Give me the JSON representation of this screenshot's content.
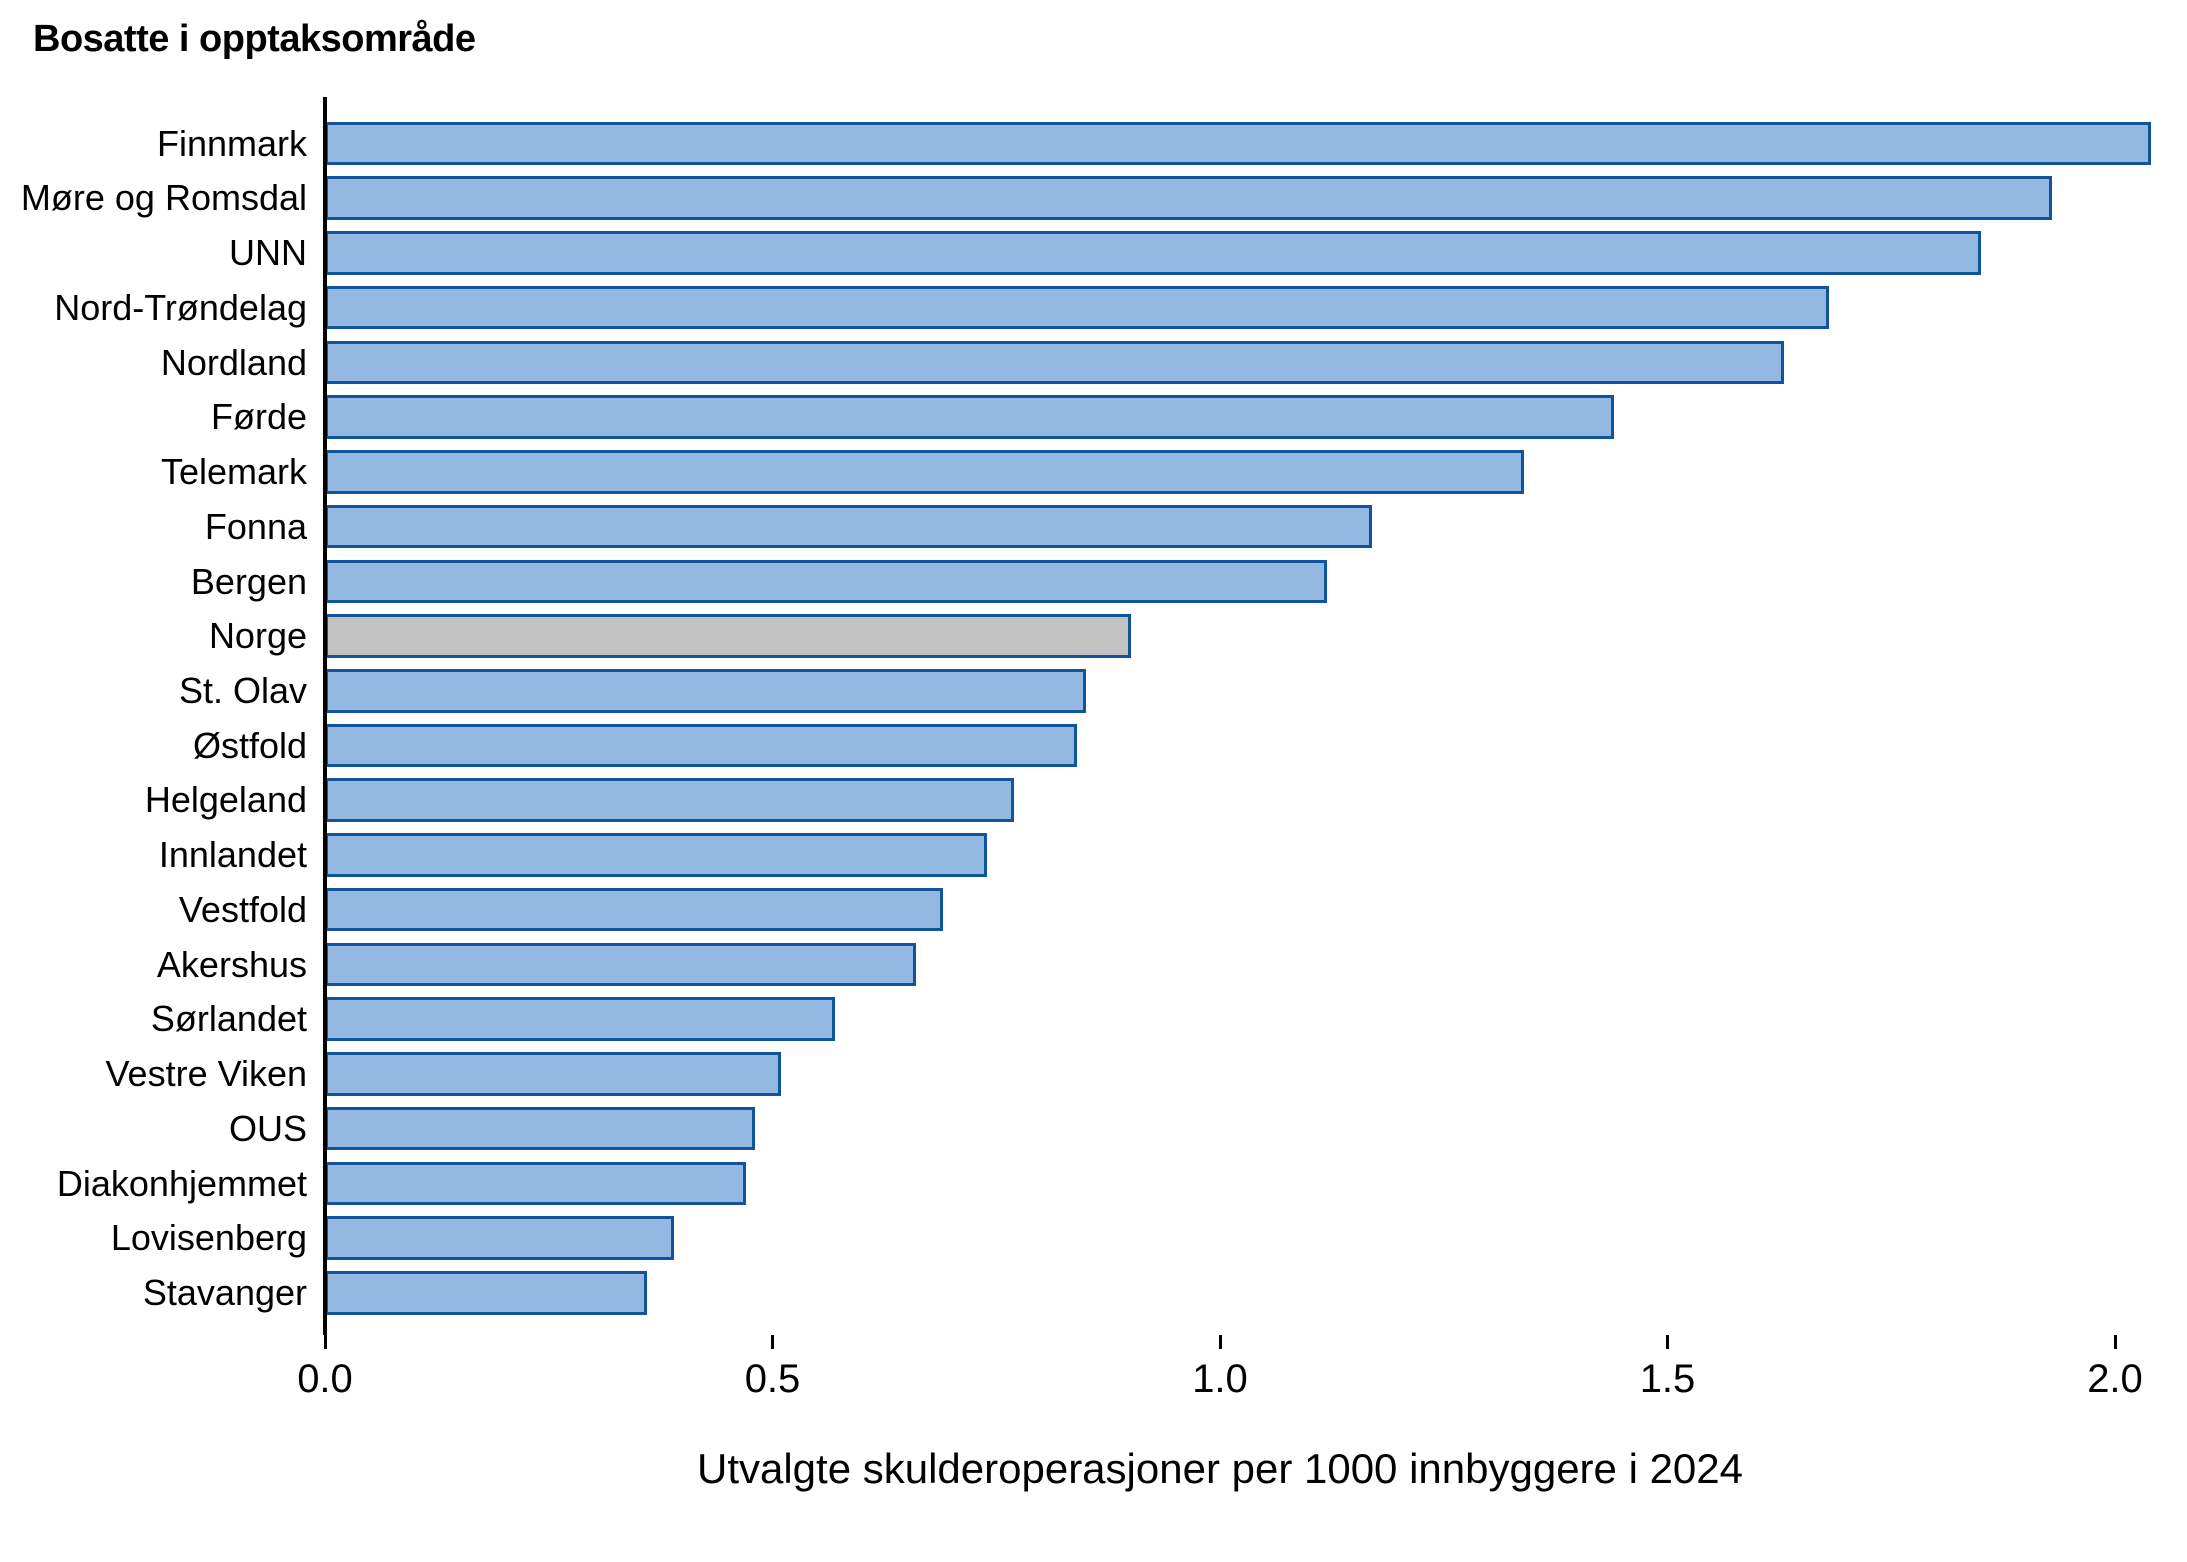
{
  "title": "Bosatte i opptaksområde",
  "chart_data": {
    "type": "bar",
    "orientation": "horizontal",
    "title": "Bosatte i opptaksområde",
    "xlabel": "Utvalgte skulderoperasjoner per 1000 innbyggere i 2024",
    "categories": [
      "Finnmark",
      "Møre og Romsdal",
      "UNN",
      "Nord-Trøndelag",
      "Nordland",
      "Førde",
      "Telemark",
      "Fonna",
      "Bergen",
      "Norge",
      "St. Olav",
      "Østfold",
      "Helgeland",
      "Innlandet",
      "Vestfold",
      "Akershus",
      "Sørlandet",
      "Vestre Viken",
      "OUS",
      "Diakonhjemmet",
      "Lovisenberg",
      "Stavanger"
    ],
    "values": [
      2.04,
      1.93,
      1.85,
      1.68,
      1.63,
      1.44,
      1.34,
      1.17,
      1.12,
      0.9,
      0.85,
      0.84,
      0.77,
      0.74,
      0.69,
      0.66,
      0.57,
      0.51,
      0.48,
      0.47,
      0.39,
      0.36
    ],
    "highlight_category": "Norge",
    "highlight_index": 9,
    "xlim": [
      0.0,
      2.08
    ],
    "x_ticks": [
      0.0,
      0.5,
      1.0,
      1.5,
      2.0
    ],
    "x_tick_labels": [
      "0.0",
      "0.5",
      "1.0",
      "1.5",
      "2.0"
    ],
    "grid": false,
    "legend": false,
    "colors": {
      "bar_fill": "#93b8e2",
      "bar_border": "#11549c",
      "highlight_fill": "#c2c2c2",
      "axis": "#000000",
      "text": "#000000"
    }
  }
}
